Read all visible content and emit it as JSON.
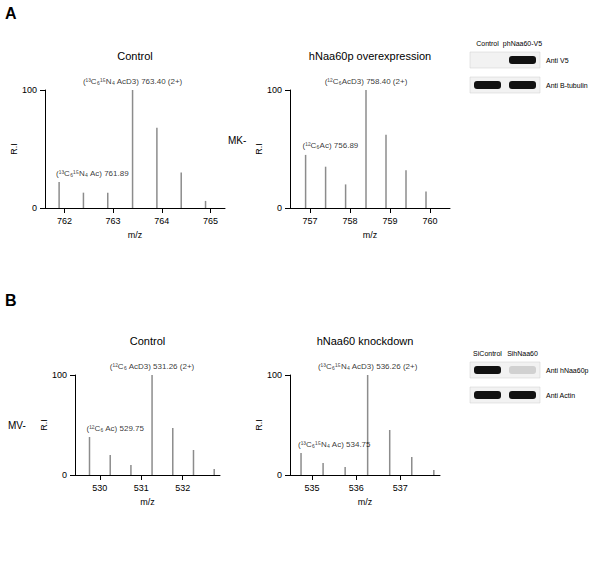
{
  "chart_data": [
    {
      "type": "bar",
      "title": "Control",
      "color": "#8c8c8c",
      "grid": false,
      "xlabel": "m/z",
      "ylabel": "R.I",
      "x": [
        761.89,
        762.39,
        762.89,
        763.4,
        763.9,
        764.4,
        764.9
      ],
      "values": [
        22,
        13,
        13,
        100,
        68,
        30,
        6
      ],
      "xlim": [
        761.6,
        765.3
      ],
      "xticks": [
        762,
        763,
        764,
        765
      ],
      "ylim": [
        0,
        100
      ],
      "yticks": [
        0,
        100
      ],
      "annotations": [
        {
          "x": 763.4,
          "y": 100,
          "text": "(¹³C₆¹⁵N₄ AcD3) 763.40 (2+)"
        },
        {
          "x": 761.89,
          "y": 22,
          "text": "(¹³C₆¹⁵N₄ Ac) 761.89"
        }
      ]
    },
    {
      "type": "bar",
      "title": "hNaa60p overexpression",
      "color": "#8c8c8c",
      "grid": false,
      "xlabel": "m/z",
      "ylabel": "R.I",
      "x": [
        756.89,
        757.39,
        757.89,
        758.4,
        758.9,
        759.4,
        759.9
      ],
      "values": [
        45,
        35,
        20,
        100,
        62,
        32,
        14
      ],
      "xlim": [
        756.5,
        760.5
      ],
      "xticks": [
        757,
        758,
        759,
        760
      ],
      "ylim": [
        0,
        100
      ],
      "yticks": [
        0,
        100
      ],
      "annotations": [
        {
          "x": 758.4,
          "y": 100,
          "text": "(¹²C₆AcD3) 758.40 (2+)"
        },
        {
          "x": 756.89,
          "y": 45,
          "text": "(¹²C₆Ac) 756.89"
        }
      ]
    },
    {
      "type": "bar",
      "title": "Control",
      "color": "#8c8c8c",
      "grid": false,
      "xlabel": "m/z",
      "ylabel": "R.I",
      "x": [
        529.75,
        530.25,
        530.75,
        531.26,
        531.76,
        532.26,
        532.76
      ],
      "values": [
        38,
        20,
        10,
        100,
        47,
        25,
        6
      ],
      "xlim": [
        529.4,
        532.9
      ],
      "xticks": [
        530,
        531,
        532
      ],
      "ylim": [
        0,
        100
      ],
      "yticks": [
        0,
        100
      ],
      "annotations": [
        {
          "x": 531.26,
          "y": 100,
          "text": "(¹²C₆ AcD3) 531.26 (2+)"
        },
        {
          "x": 529.75,
          "y": 38,
          "text": "(¹²C₆ Ac) 529.75"
        }
      ]
    },
    {
      "type": "bar",
      "title": "hNaa60 knockdown",
      "color": "#8c8c8c",
      "grid": false,
      "xlabel": "m/z",
      "ylabel": "R.I",
      "x": [
        534.75,
        535.25,
        535.75,
        536.26,
        536.76,
        537.26,
        537.76
      ],
      "values": [
        22,
        12,
        8,
        100,
        45,
        18,
        5
      ],
      "xlim": [
        534.5,
        537.9
      ],
      "xticks": [
        535,
        536,
        537
      ],
      "ylim": [
        0,
        100
      ],
      "yticks": [
        0,
        100
      ],
      "annotations": [
        {
          "x": 536.26,
          "y": 100,
          "text": "(¹³C₆¹⁵N₄ AcD3) 536.26 (2+)"
        },
        {
          "x": 534.75,
          "y": 22,
          "text": "(¹³C₆¹⁵N₄ Ac) 534.75"
        }
      ]
    }
  ],
  "figure": {
    "panels": [
      {
        "label": "A",
        "peptide": "MK-",
        "blot": {
          "lanes": [
            "Control",
            "phNaa60-V5"
          ],
          "rows": [
            {
              "label": "Anti V5",
              "signal": [
                0,
                1
              ]
            },
            {
              "label": "Anti B-tubulin",
              "signal": [
                1,
                1
              ]
            }
          ]
        }
      },
      {
        "label": "B",
        "peptide": "MV-",
        "blot": {
          "lanes": [
            "SiControl",
            "SihNaa60"
          ],
          "rows": [
            {
              "label": "Anti hNaa60p",
              "signal": [
                1,
                0.15
              ]
            },
            {
              "label": "Anti Actin",
              "signal": [
                1,
                1
              ]
            }
          ]
        }
      }
    ]
  }
}
